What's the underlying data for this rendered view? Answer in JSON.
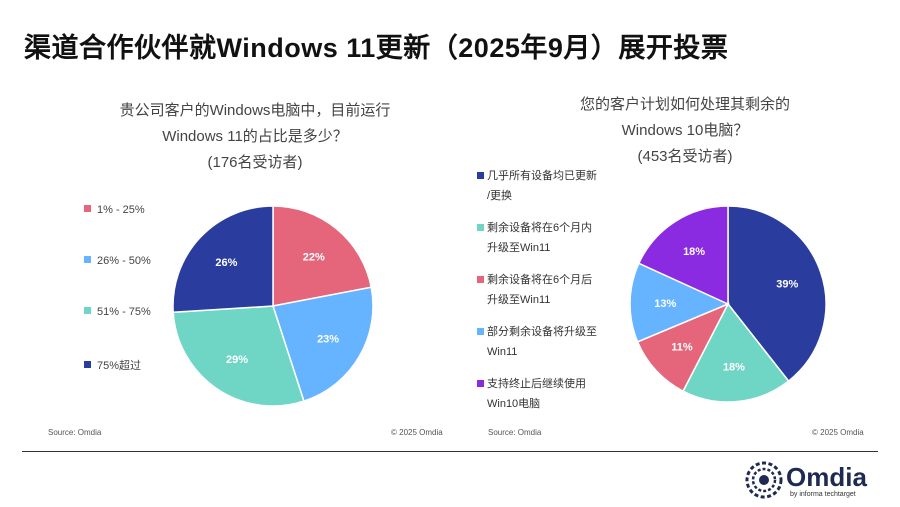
{
  "header": {
    "title": "渠道合作伙伴就Windows 11更新（2025年9月）展开投票"
  },
  "chart_data": [
    {
      "type": "pie",
      "title_lines": [
        "贵公司客户的Windows电脑中，目前运行",
        "Windows 11的占比是多少？",
        "(176名受访者)"
      ],
      "legend_position": "left",
      "series": [
        {
          "name": "1% - 25%",
          "value": 22,
          "label": "22%",
          "color": "#e5667a"
        },
        {
          "name": "26% - 50%",
          "value": 23,
          "label": "23%",
          "color": "#66b3ff"
        },
        {
          "name": "51% - 75%",
          "value": 29,
          "label": "29%",
          "color": "#6fd6c6"
        },
        {
          "name": "75%超过",
          "value": 26,
          "label": "26%",
          "color": "#2a3d9e"
        }
      ],
      "source": "Source: Omdia",
      "copyright": "© 2025 Omdia"
    },
    {
      "type": "pie",
      "title_lines": [
        "您的客户计划如何处理其剩余的",
        "Windows 10电脑？",
        "(453名受访者)"
      ],
      "legend_position": "left",
      "series": [
        {
          "name_lines": [
            "几乎所有设备均已更新",
            "/更换"
          ],
          "value": 39,
          "label": "39%",
          "color": "#2a3d9e"
        },
        {
          "name_lines": [
            "剩余设备将在6个月内",
            "升级至Win11"
          ],
          "value": 18,
          "label": "18%",
          "color": "#6fd6c6"
        },
        {
          "name_lines": [
            "剩余设备将在6个月后",
            "升级至Win11"
          ],
          "value": 11,
          "label": "11%",
          "color": "#e5667a"
        },
        {
          "name_lines": [
            "部分剩余设备将升级至",
            "Win11"
          ],
          "value": 13,
          "label": "13%",
          "color": "#66b3ff"
        },
        {
          "name_lines": [
            "支持终止后继续使用",
            "Win10电脑"
          ],
          "value": 18,
          "label": "18%",
          "color": "#8a2be2"
        }
      ],
      "source": "Source: Omdia",
      "copyright": "© 2025 Omdia"
    }
  ],
  "brand": {
    "logo_text": "Omdia",
    "logo_sub": "by informa techtarget"
  }
}
